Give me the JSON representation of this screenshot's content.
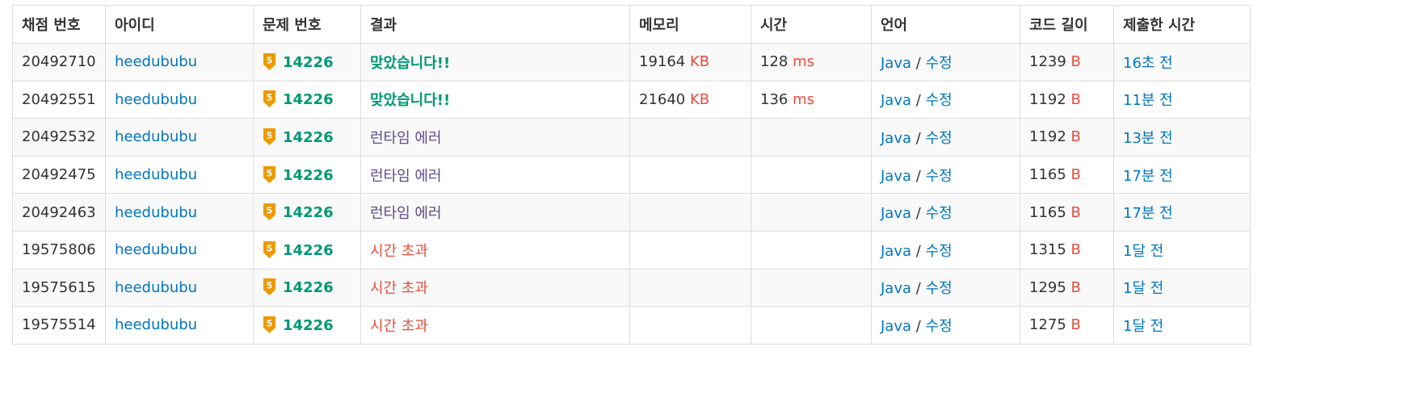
{
  "colors": {
    "link": "#0076c0",
    "accepted": "#009874",
    "runtime_error": "#5f4b8b",
    "time_limit": "#e74c3c",
    "unit": "#e74c3c",
    "tier_gold": "#ec9a00"
  },
  "headers": [
    "채점 번호",
    "아이디",
    "문제 번호",
    "결과",
    "메모리",
    "시간",
    "언어",
    "코드 길이",
    "제출한 시간"
  ],
  "units": {
    "memory": "KB",
    "time": "ms",
    "code": "B"
  },
  "edit_label": "수정",
  "language_separator": "/",
  "rows": [
    {
      "submission_id": "20492710",
      "user": "heedububu",
      "tier": "5",
      "problem": "14226",
      "result": "맞았습니다!!",
      "result_type": "ac",
      "memory": "19164",
      "time": "128",
      "language": "Java",
      "code_length": "1239",
      "submitted": "16초 전"
    },
    {
      "submission_id": "20492551",
      "user": "heedububu",
      "tier": "5",
      "problem": "14226",
      "result": "맞았습니다!!",
      "result_type": "ac",
      "memory": "21640",
      "time": "136",
      "language": "Java",
      "code_length": "1192",
      "submitted": "11분 전"
    },
    {
      "submission_id": "20492532",
      "user": "heedububu",
      "tier": "5",
      "problem": "14226",
      "result": "런타임 에러",
      "result_type": "rte",
      "memory": "",
      "time": "",
      "language": "Java",
      "code_length": "1192",
      "submitted": "13분 전"
    },
    {
      "submission_id": "20492475",
      "user": "heedububu",
      "tier": "5",
      "problem": "14226",
      "result": "런타임 에러",
      "result_type": "rte",
      "memory": "",
      "time": "",
      "language": "Java",
      "code_length": "1165",
      "submitted": "17분 전"
    },
    {
      "submission_id": "20492463",
      "user": "heedububu",
      "tier": "5",
      "problem": "14226",
      "result": "런타임 에러",
      "result_type": "rte",
      "memory": "",
      "time": "",
      "language": "Java",
      "code_length": "1165",
      "submitted": "17분 전"
    },
    {
      "submission_id": "19575806",
      "user": "heedububu",
      "tier": "5",
      "problem": "14226",
      "result": "시간 초과",
      "result_type": "tle",
      "memory": "",
      "time": "",
      "language": "Java",
      "code_length": "1315",
      "submitted": "1달 전"
    },
    {
      "submission_id": "19575615",
      "user": "heedububu",
      "tier": "5",
      "problem": "14226",
      "result": "시간 초과",
      "result_type": "tle",
      "memory": "",
      "time": "",
      "language": "Java",
      "code_length": "1295",
      "submitted": "1달 전"
    },
    {
      "submission_id": "19575514",
      "user": "heedububu",
      "tier": "5",
      "problem": "14226",
      "result": "시간 초과",
      "result_type": "tle",
      "memory": "",
      "time": "",
      "language": "Java",
      "code_length": "1275",
      "submitted": "1달 전"
    }
  ]
}
